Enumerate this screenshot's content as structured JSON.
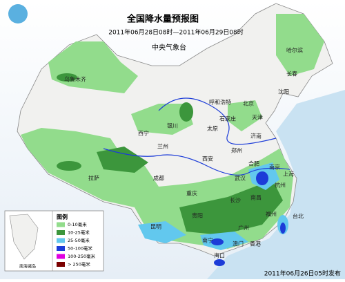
{
  "header": {
    "title": "全国降水量预报图",
    "subtitle": "2011年06月28日08时—2011年06月29日08时",
    "issuer": "中央气象台"
  },
  "legend": {
    "title": "图例",
    "items": [
      {
        "label": "0-10毫米",
        "color": "#92dc8c"
      },
      {
        "label": "10-25毫米",
        "color": "#3c963c"
      },
      {
        "label": "25-50毫米",
        "color": "#62c8ee"
      },
      {
        "label": "50-100毫米",
        "color": "#1c3cd8"
      },
      {
        "label": "100-250毫米",
        "color": "#e000e0"
      },
      {
        "label": "> 250毫米",
        "color": "#7a0000"
      }
    ]
  },
  "inset_label": "南海诸岛",
  "footer": "2011年06月26日05时发布",
  "cities": [
    "乌鲁木齐",
    "哈尔滨",
    "长春",
    "沈阳",
    "呼和浩特",
    "北京",
    "天津",
    "石家庄",
    "太原",
    "银川",
    "济南",
    "西宁",
    "兰州",
    "郑州",
    "西安",
    "合肥",
    "南京",
    "上海",
    "拉萨",
    "成都",
    "武汉",
    "杭州",
    "重庆",
    "长沙",
    "南昌",
    "贵阳",
    "福州",
    "昆明",
    "台北",
    "广州",
    "南宁",
    "澳门",
    "香港",
    "海口"
  ]
}
